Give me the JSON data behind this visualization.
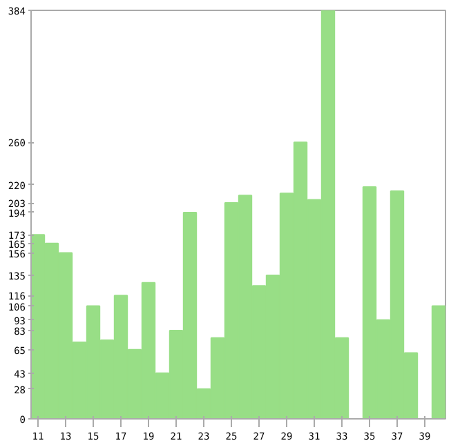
{
  "chart_data": {
    "type": "bar",
    "x": [
      11,
      12,
      13,
      14,
      15,
      16,
      17,
      18,
      19,
      20,
      21,
      22,
      23,
      24,
      25,
      26,
      27,
      28,
      29,
      30,
      31,
      32,
      33,
      34,
      35,
      36,
      37,
      38,
      39,
      40
    ],
    "values": [
      173,
      165,
      156,
      72,
      106,
      74,
      116,
      65,
      128,
      43,
      83,
      194,
      28,
      76,
      203,
      210,
      125,
      135,
      212,
      260,
      206,
      384,
      76,
      0,
      218,
      93,
      214,
      62,
      0,
      106
    ],
    "color": "#98de86",
    "xlim": [
      10.5,
      40.5
    ],
    "xticks": [
      11,
      13,
      15,
      17,
      19,
      21,
      23,
      25,
      27,
      29,
      31,
      33,
      35,
      37,
      39
    ],
    "ylim": [
      0,
      384
    ],
    "yticks": [
      0,
      28,
      43,
      65,
      83,
      93,
      106,
      116,
      135,
      156,
      165,
      173,
      194,
      203,
      220,
      260,
      384
    ],
    "grid": false
  }
}
